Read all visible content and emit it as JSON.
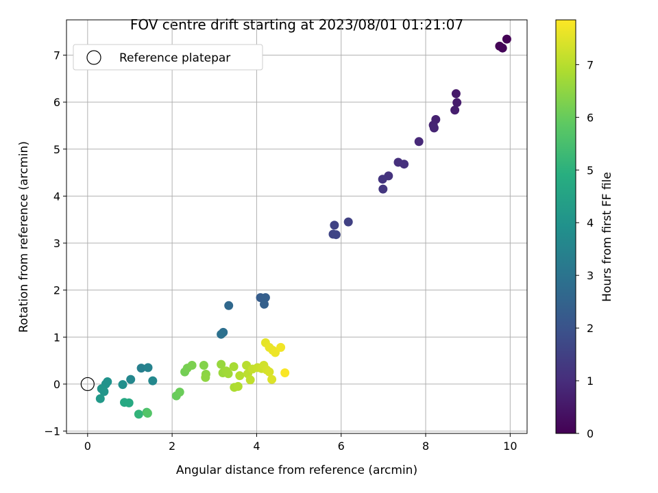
{
  "chart_data": {
    "type": "scatter",
    "title": "FOV centre drift starting at 2023/08/01 01:21:07",
    "xlabel": "Angular distance from reference (arcmin)",
    "ylabel": "Rotation from reference (arcmin)",
    "xlim": [
      -0.5,
      10.4
    ],
    "ylim": [
      -1.05,
      7.75
    ],
    "xticks": [
      0,
      2,
      4,
      6,
      8,
      10
    ],
    "yticks": [
      -1,
      0,
      1,
      2,
      3,
      4,
      5,
      6,
      7
    ],
    "grid": true,
    "legend": {
      "placement": "upper-left",
      "entries": [
        "Reference platepar"
      ]
    },
    "reference_point": {
      "x": 0,
      "y": 0,
      "marker": "open-circle"
    },
    "colorbar": {
      "label": "Hours from first FF file",
      "range": [
        0,
        7.85
      ],
      "ticks": [
        0,
        1,
        2,
        3,
        4,
        5,
        6,
        7
      ],
      "colormap": "viridis"
    },
    "points": [
      {
        "x": 9.92,
        "y": 7.34,
        "h": 0.03
      },
      {
        "x": 9.75,
        "y": 7.19,
        "h": 0.06
      },
      {
        "x": 9.82,
        "y": 7.15,
        "h": 0.09
      },
      {
        "x": 8.72,
        "y": 6.18,
        "h": 0.55
      },
      {
        "x": 8.74,
        "y": 5.99,
        "h": 0.6
      },
      {
        "x": 8.69,
        "y": 5.83,
        "h": 0.65
      },
      {
        "x": 8.24,
        "y": 5.63,
        "h": 0.72
      },
      {
        "x": 8.18,
        "y": 5.51,
        "h": 0.76
      },
      {
        "x": 8.2,
        "y": 5.45,
        "h": 0.8
      },
      {
        "x": 7.84,
        "y": 5.16,
        "h": 0.9
      },
      {
        "x": 7.35,
        "y": 4.72,
        "h": 1.05
      },
      {
        "x": 7.49,
        "y": 4.68,
        "h": 1.1
      },
      {
        "x": 7.12,
        "y": 4.43,
        "h": 1.15
      },
      {
        "x": 6.98,
        "y": 4.36,
        "h": 1.2
      },
      {
        "x": 6.99,
        "y": 4.15,
        "h": 1.25
      },
      {
        "x": 6.17,
        "y": 3.45,
        "h": 1.5
      },
      {
        "x": 5.84,
        "y": 3.38,
        "h": 1.55
      },
      {
        "x": 5.81,
        "y": 3.19,
        "h": 1.6
      },
      {
        "x": 5.88,
        "y": 3.18,
        "h": 1.63
      },
      {
        "x": 4.09,
        "y": 1.84,
        "h": 2.3
      },
      {
        "x": 4.21,
        "y": 1.84,
        "h": 2.35
      },
      {
        "x": 4.18,
        "y": 1.7,
        "h": 2.4
      },
      {
        "x": 3.34,
        "y": 1.67,
        "h": 2.65
      },
      {
        "x": 3.21,
        "y": 1.1,
        "h": 2.85
      },
      {
        "x": 3.16,
        "y": 1.06,
        "h": 2.9
      },
      {
        "x": 1.27,
        "y": 0.34,
        "h": 3.35
      },
      {
        "x": 1.43,
        "y": 0.35,
        "h": 3.45
      },
      {
        "x": 1.02,
        "y": 0.1,
        "h": 3.6
      },
      {
        "x": 1.54,
        "y": 0.07,
        "h": 3.65
      },
      {
        "x": 0.83,
        "y": -0.01,
        "h": 3.85
      },
      {
        "x": 0.47,
        "y": 0.05,
        "h": 3.95
      },
      {
        "x": 0.43,
        "y": 0.0,
        "h": 4.0
      },
      {
        "x": 0.33,
        "y": -0.1,
        "h": 4.05
      },
      {
        "x": 0.39,
        "y": -0.16,
        "h": 4.1
      },
      {
        "x": 0.3,
        "y": -0.31,
        "h": 4.2
      },
      {
        "x": 0.87,
        "y": -0.39,
        "h": 4.7
      },
      {
        "x": 0.98,
        "y": -0.4,
        "h": 4.75
      },
      {
        "x": 1.21,
        "y": -0.64,
        "h": 5.1
      },
      {
        "x": 1.4,
        "y": -0.6,
        "h": 5.5
      },
      {
        "x": 1.42,
        "y": -0.62,
        "h": 5.7
      },
      {
        "x": 2.1,
        "y": -0.25,
        "h": 6.0
      },
      {
        "x": 2.18,
        "y": -0.17,
        "h": 6.05
      },
      {
        "x": 2.3,
        "y": 0.26,
        "h": 6.15
      },
      {
        "x": 2.36,
        "y": 0.34,
        "h": 6.2
      },
      {
        "x": 2.47,
        "y": 0.4,
        "h": 6.25
      },
      {
        "x": 2.75,
        "y": 0.4,
        "h": 6.35
      },
      {
        "x": 2.8,
        "y": 0.21,
        "h": 6.45
      },
      {
        "x": 2.79,
        "y": 0.14,
        "h": 6.5
      },
      {
        "x": 3.16,
        "y": 0.42,
        "h": 6.6
      },
      {
        "x": 3.2,
        "y": 0.24,
        "h": 6.65
      },
      {
        "x": 3.28,
        "y": 0.28,
        "h": 6.7
      },
      {
        "x": 3.33,
        "y": 0.22,
        "h": 6.72
      },
      {
        "x": 3.46,
        "y": 0.37,
        "h": 6.8
      },
      {
        "x": 3.47,
        "y": -0.07,
        "h": 6.85
      },
      {
        "x": 3.56,
        "y": -0.05,
        "h": 6.9
      },
      {
        "x": 3.6,
        "y": 0.18,
        "h": 6.95
      },
      {
        "x": 3.76,
        "y": 0.4,
        "h": 7.0
      },
      {
        "x": 3.79,
        "y": 0.22,
        "h": 7.05
      },
      {
        "x": 3.85,
        "y": 0.09,
        "h": 7.1
      },
      {
        "x": 3.9,
        "y": 0.32,
        "h": 7.15
      },
      {
        "x": 4.02,
        "y": 0.35,
        "h": 7.2
      },
      {
        "x": 4.12,
        "y": 0.33,
        "h": 7.25
      },
      {
        "x": 4.17,
        "y": 0.4,
        "h": 7.3
      },
      {
        "x": 4.24,
        "y": 0.3,
        "h": 7.35
      },
      {
        "x": 4.3,
        "y": 0.26,
        "h": 7.4
      },
      {
        "x": 4.36,
        "y": 0.1,
        "h": 7.45
      },
      {
        "x": 4.21,
        "y": 0.88,
        "h": 7.55
      },
      {
        "x": 4.3,
        "y": 0.78,
        "h": 7.6
      },
      {
        "x": 4.38,
        "y": 0.72,
        "h": 7.62
      },
      {
        "x": 4.44,
        "y": 0.67,
        "h": 7.65
      },
      {
        "x": 4.57,
        "y": 0.78,
        "h": 7.7
      },
      {
        "x": 4.67,
        "y": 0.24,
        "h": 7.8
      }
    ]
  }
}
